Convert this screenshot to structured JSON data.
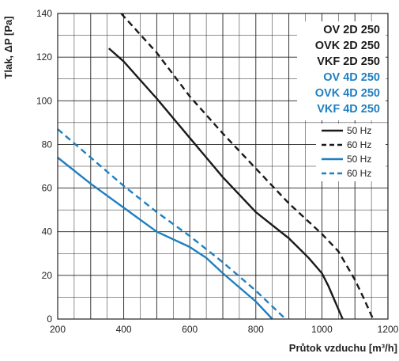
{
  "chart_data": {
    "type": "line",
    "xlabel": "Průtok vzduchu [m³/h]",
    "ylabel": "Tlak, ΔP [Pa]",
    "xlim": [
      200,
      1200
    ],
    "ylim": [
      0,
      140
    ],
    "x_ticks": [
      "200",
      "400",
      "600",
      "800",
      "1000",
      "1200"
    ],
    "y_ticks": [
      "0",
      "20",
      "40",
      "60",
      "80",
      "100",
      "120",
      "140"
    ],
    "grid": true,
    "models_black": [
      "OV 2D 250",
      "OVK 2D 250",
      "VKF 2D 250"
    ],
    "models_blue": [
      "OV 4D 250",
      "OVK 4D 250",
      "VKF 4D 250"
    ],
    "legend_position": "top-right",
    "colors": {
      "black": "#1a1a1a",
      "blue": "#1f7fc0"
    },
    "series": [
      {
        "name": "50 Hz",
        "group": "black",
        "dashed": false,
        "points": [
          [
            355,
            124
          ],
          [
            400,
            118
          ],
          [
            500,
            101
          ],
          [
            600,
            83
          ],
          [
            700,
            65
          ],
          [
            800,
            49
          ],
          [
            900,
            37
          ],
          [
            960,
            28
          ],
          [
            1000,
            21
          ],
          [
            1020,
            15
          ],
          [
            1040,
            8
          ],
          [
            1063,
            0
          ]
        ]
      },
      {
        "name": "60 Hz",
        "group": "black",
        "dashed": false,
        "points": [
          [
            392,
            140
          ],
          [
            500,
            122
          ],
          [
            600,
            102
          ],
          [
            700,
            85
          ],
          [
            800,
            69
          ],
          [
            900,
            53
          ],
          [
            1000,
            39
          ],
          [
            1050,
            31
          ],
          [
            1100,
            18
          ],
          [
            1125,
            10
          ],
          [
            1155,
            0
          ]
        ]
      },
      {
        "name": "50 Hz",
        "group": "blue",
        "dashed": false,
        "points": [
          [
            200,
            74
          ],
          [
            300,
            62
          ],
          [
            400,
            51
          ],
          [
            500,
            40
          ],
          [
            600,
            33
          ],
          [
            650,
            28
          ],
          [
            700,
            21
          ],
          [
            800,
            8
          ],
          [
            850,
            0
          ]
        ]
      },
      {
        "name": "60 Hz",
        "group": "blue",
        "dashed": true,
        "points": [
          [
            200,
            87
          ],
          [
            300,
            74
          ],
          [
            400,
            61
          ],
          [
            500,
            49
          ],
          [
            600,
            38
          ],
          [
            700,
            26
          ],
          [
            800,
            13
          ],
          [
            890,
            0
          ]
        ]
      }
    ]
  }
}
